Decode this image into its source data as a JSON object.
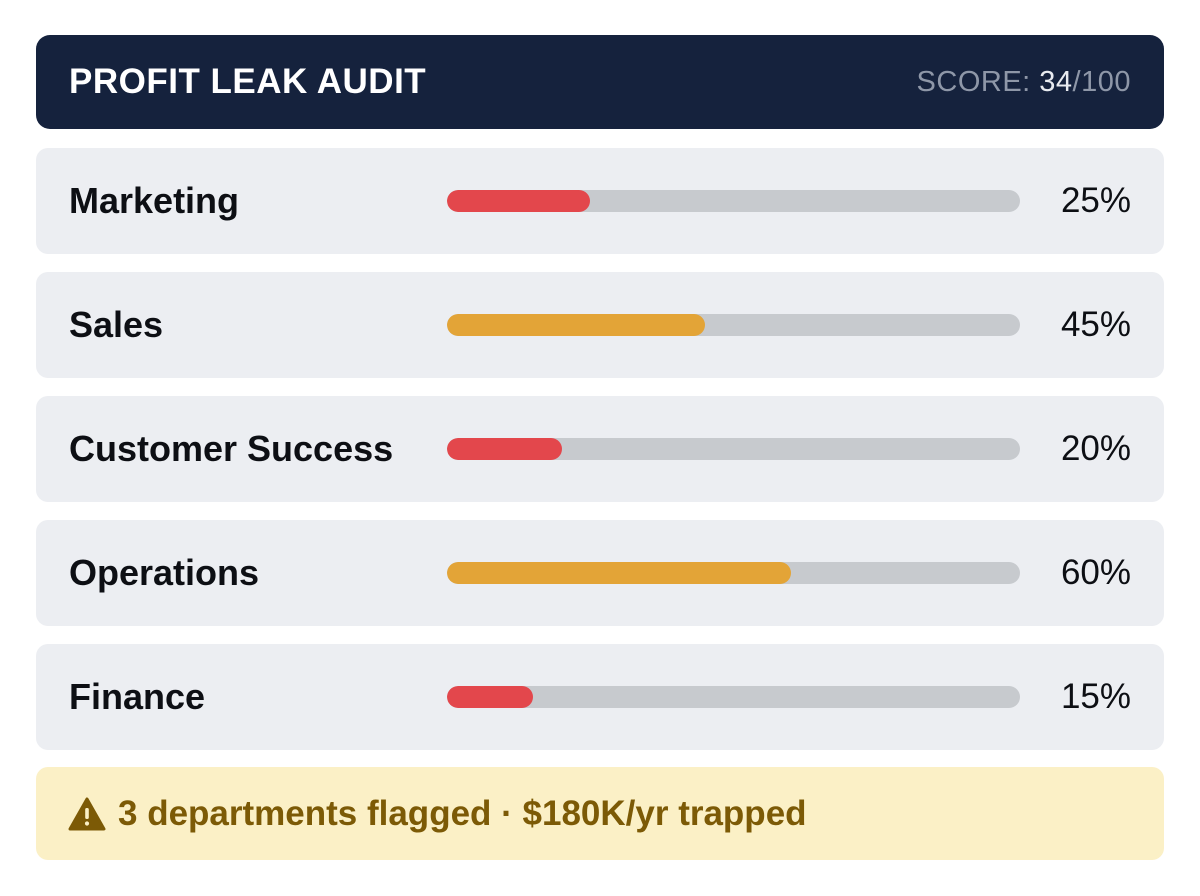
{
  "header": {
    "title": "PROFIT LEAK AUDIT",
    "score_label": "SCORE: ",
    "score_value": "34",
    "score_suffix": "/100"
  },
  "colors": {
    "header_bg": "#15223d",
    "critical": "#e3474c",
    "warning": "#e3a437",
    "track": "#c7cace",
    "alert_bg": "#fbf0c6",
    "alert_text": "#7c5a06"
  },
  "departments": [
    {
      "name": "Marketing",
      "percent": 25,
      "percent_label": "25%",
      "status": "critical"
    },
    {
      "name": "Sales",
      "percent": 45,
      "percent_label": "45%",
      "status": "warning"
    },
    {
      "name": "Customer Success",
      "percent": 20,
      "percent_label": "20%",
      "status": "critical"
    },
    {
      "name": "Operations",
      "percent": 60,
      "percent_label": "60%",
      "status": "warning"
    },
    {
      "name": "Finance",
      "percent": 15,
      "percent_label": "15%",
      "status": "critical"
    }
  ],
  "alert": {
    "icon": "warning-icon",
    "text": "3 departments flagged · $180K/yr trapped"
  }
}
